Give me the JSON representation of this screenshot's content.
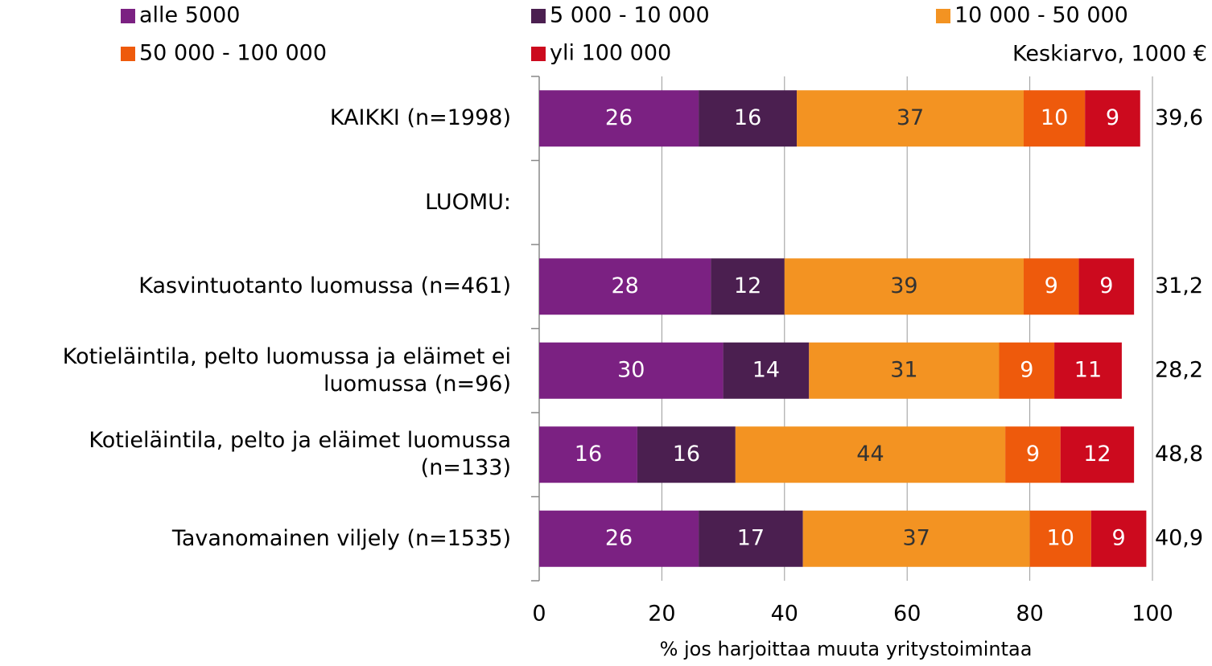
{
  "chart_data": {
    "type": "stacked_barh",
    "categories": [
      "KAIKKI (n=1998)",
      "LUOMU:",
      "Kasvintuotanto luomussa (n=461)",
      "Kotieläintila, pelto luomussa ja eläimet ei luomussa (n=96)",
      "Kotieläintila, pelto ja eläimet luomussa (n=133)",
      "Tavanomainen viljely (n=1535)"
    ],
    "series": [
      {
        "name": "alle 5000",
        "color": "#7b2182",
        "values": [
          26,
          null,
          28,
          30,
          16,
          26
        ]
      },
      {
        "name": "5 000 - 10 000",
        "color": "#4b1f50",
        "values": [
          16,
          null,
          12,
          14,
          16,
          17
        ]
      },
      {
        "name": "10 000 - 50 000",
        "color": "#f39322",
        "values": [
          37,
          null,
          39,
          31,
          44,
          37
        ]
      },
      {
        "name": "50 000 - 100 000",
        "color": "#ee5a0c",
        "values": [
          10,
          null,
          9,
          9,
          9,
          10
        ]
      },
      {
        "name": "yli 100 000",
        "color": "#cc0a1e",
        "values": [
          9,
          null,
          9,
          11,
          12,
          9
        ]
      }
    ],
    "averages": {
      "label": "Keskiarvo, 1000 €",
      "values": [
        39.6,
        null,
        31.2,
        28.2,
        48.8,
        40.9
      ],
      "value_labels": [
        "39,6",
        null,
        "31,2",
        "28,2",
        "48,8",
        "40,9"
      ]
    },
    "xlabel": "% jos harjoittaa muuta yritystoimintaa",
    "xlim": [
      0,
      100
    ],
    "xticks": [
      0,
      20,
      40,
      60,
      80,
      100
    ],
    "grid": true
  }
}
